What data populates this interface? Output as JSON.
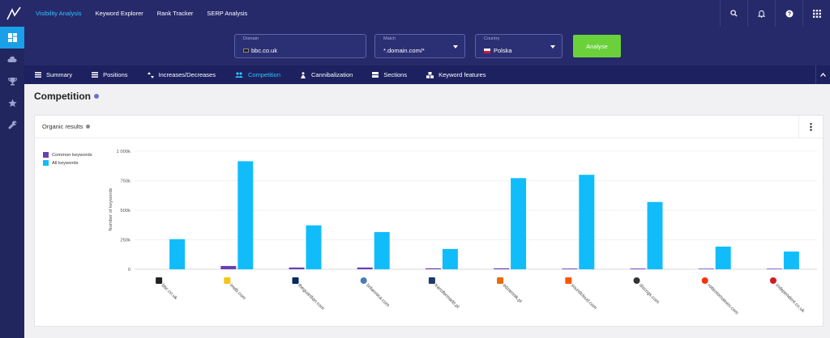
{
  "topnav": [
    "Visibility Analysis",
    "Keyword Explorer",
    "Rank Tracker",
    "SERP Analysis"
  ],
  "search": {
    "domain_label": "Domain",
    "domain_value": "bbc.co.uk",
    "match_label": "Match",
    "match_value": "*.domain.com/*",
    "country_label": "Country",
    "country_value": "Polska",
    "analyse_label": "Analyse"
  },
  "tabs": [
    "Summary",
    "Positions",
    "Increases/Decreases",
    "Competition",
    "Cannibalization",
    "Sections",
    "Keyword features"
  ],
  "active_tab": "Competition",
  "page_title": "Competition",
  "card_title": "Organic results",
  "colors": {
    "accent": "#2ec4ff",
    "nav": "#262a6b",
    "analyse": "#6bd13a",
    "common": "#6a3fb5",
    "all": "#10bdfa"
  },
  "chart_data": {
    "type": "bar",
    "categories": [
      "bbc.co.uk",
      "imdb.com",
      "theguardian.com",
      "britannica.com",
      "transfermarkt.pl",
      "edziennik.pl",
      "soundcloud.com",
      "discogs.com",
      "rottentomatoes.com",
      "independent.co.uk"
    ],
    "series": [
      {
        "name": "Common keywords",
        "values": [
          0,
          28000,
          15000,
          15000,
          8000,
          8000,
          6000,
          6000,
          5000,
          5000
        ]
      },
      {
        "name": "All keywords",
        "values": [
          255000,
          915000,
          372000,
          315000,
          172000,
          772000,
          800000,
          570000,
          192000,
          150000
        ]
      }
    ],
    "ylabel": "Number of keywords",
    "yticks": [
      "0",
      "250k",
      "500k",
      "750k",
      "1 000k"
    ],
    "ylim": [
      0,
      1000000
    ],
    "legend": "top-left",
    "grid": true
  }
}
